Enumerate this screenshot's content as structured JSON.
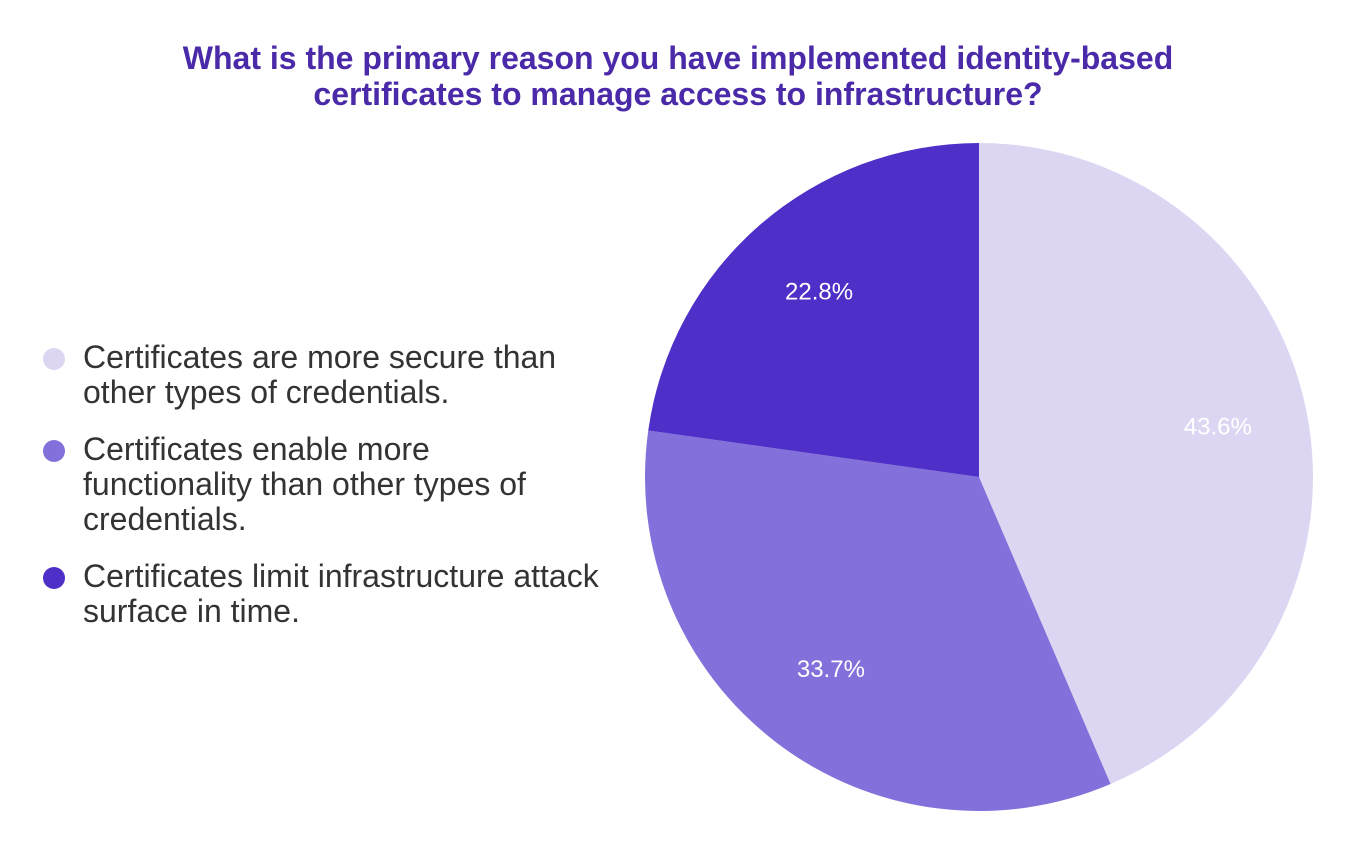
{
  "chart_data": {
    "type": "pie",
    "title": "What is the primary reason you have implemented identity-based certificates to manage access to infrastructure?",
    "categories": [
      "Certificates are more secure than other types of credentials.",
      "Certificates enable more functionality than other types of credentials.",
      "Certificates limit infrastructure attack surface in time."
    ],
    "values": [
      43.6,
      33.7,
      22.8
    ],
    "value_labels": [
      "43.6%",
      "33.7%",
      "22.8%"
    ],
    "colors": [
      "#ddd6f3",
      "#8470db",
      "#4e2fc7"
    ],
    "legend": "left"
  }
}
